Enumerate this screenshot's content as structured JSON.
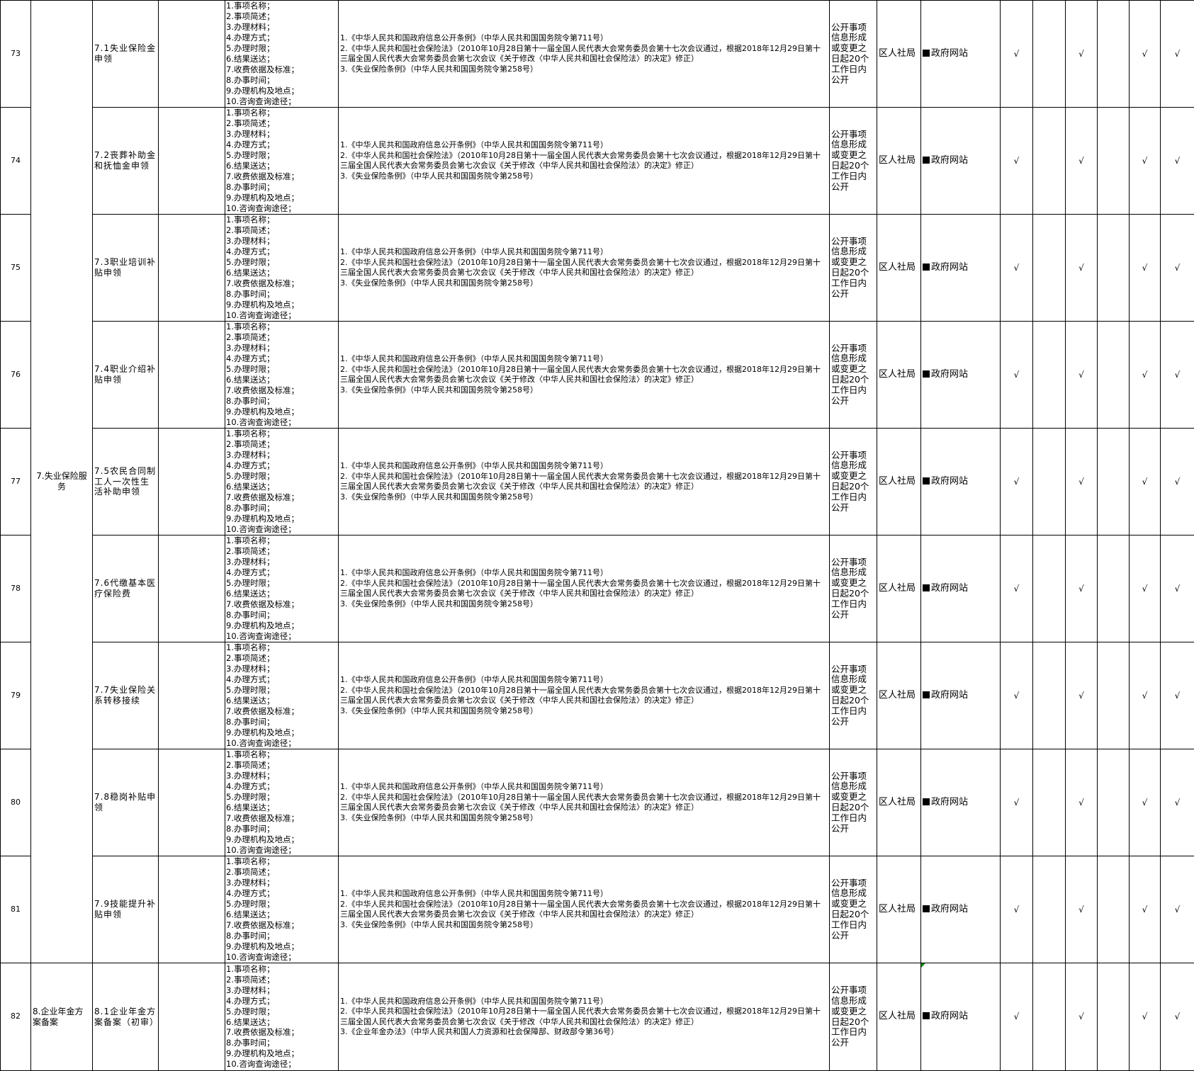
{
  "content_list": [
    "1.事项名称；",
    "2.事项简述；",
    "3.办理材料；",
    "4.办理方式；",
    "5.办理时限；",
    "6.结果送达；",
    "7.收费依据及标准；",
    "8.办事时间；",
    "9.办理机构及地点；",
    "10.咨询查询途径；"
  ],
  "laws_unemployment": [
    "1.《中华人民共和国政府信息公开条例》（中华人民共和国国务院令第711号）",
    "2.《中华人民共和国社会保险法》（2010年10月28日第十一届全国人民代表大会常务委员会第十七次会议通过，根据2018年12月29日第十三届全国人民代表大会常务委员会第七次会议《关于修改〈中华人民共和国社会保险法〉的决定》修正）",
    "3.《失业保险条例》（中华人民共和国国务院令第258号）"
  ],
  "laws_annuity": [
    "1.《中华人民共和国政府信息公开条例》（中华人民共和国国务院令第711号）",
    "2.《中华人民共和国社会保险法》（2010年10月28日第十一届全国人民代表大会常务委员会第十七次会议通过，根据2018年12月29日第十三届全国人民代表大会常务委员会第七次会议《关于修改〈中华人民共和国社会保险法〉的决定》修正）",
    "3.《企业年金办法》（中华人民共和国人力资源和社会保障部、财政部令第36号）"
  ],
  "time_limit": "公开事项信息形成或变更之日起20个工作日内公开",
  "department": "区人社局",
  "channel": "政府网站",
  "check_mark": "√",
  "checks": [
    true,
    false,
    true,
    false,
    true,
    true
  ],
  "categories": [
    {
      "label": "7.失业保险服务",
      "rowspan": 9
    },
    {
      "label": "8.企业年金方案备案",
      "rowspan": 1
    }
  ],
  "rows": [
    {
      "num": "73",
      "item": "7.1失业保险金申领",
      "laws": "unemployment"
    },
    {
      "num": "74",
      "item": "7.2丧葬补助金和抚恤金申领",
      "laws": "unemployment"
    },
    {
      "num": "75",
      "item": "7.3职业培训补贴申领",
      "laws": "unemployment"
    },
    {
      "num": "76",
      "item": "7.4职业介绍补贴申领",
      "laws": "unemployment"
    },
    {
      "num": "77",
      "item": "7.5农民合同制工人一次性生活补助申领",
      "laws": "unemployment"
    },
    {
      "num": "78",
      "item": "7.6代缴基本医疗保险费",
      "laws": "unemployment"
    },
    {
      "num": "79",
      "item": "7.7失业保险关系转移接续",
      "laws": "unemployment"
    },
    {
      "num": "80",
      "item": "7.8稳岗补贴申领",
      "laws": "unemployment"
    },
    {
      "num": "81",
      "item": "7.9技能提升补贴申领",
      "laws": "unemployment"
    },
    {
      "num": "82",
      "item": "8.1企业年金方案备案（初审）",
      "laws": "annuity"
    }
  ]
}
